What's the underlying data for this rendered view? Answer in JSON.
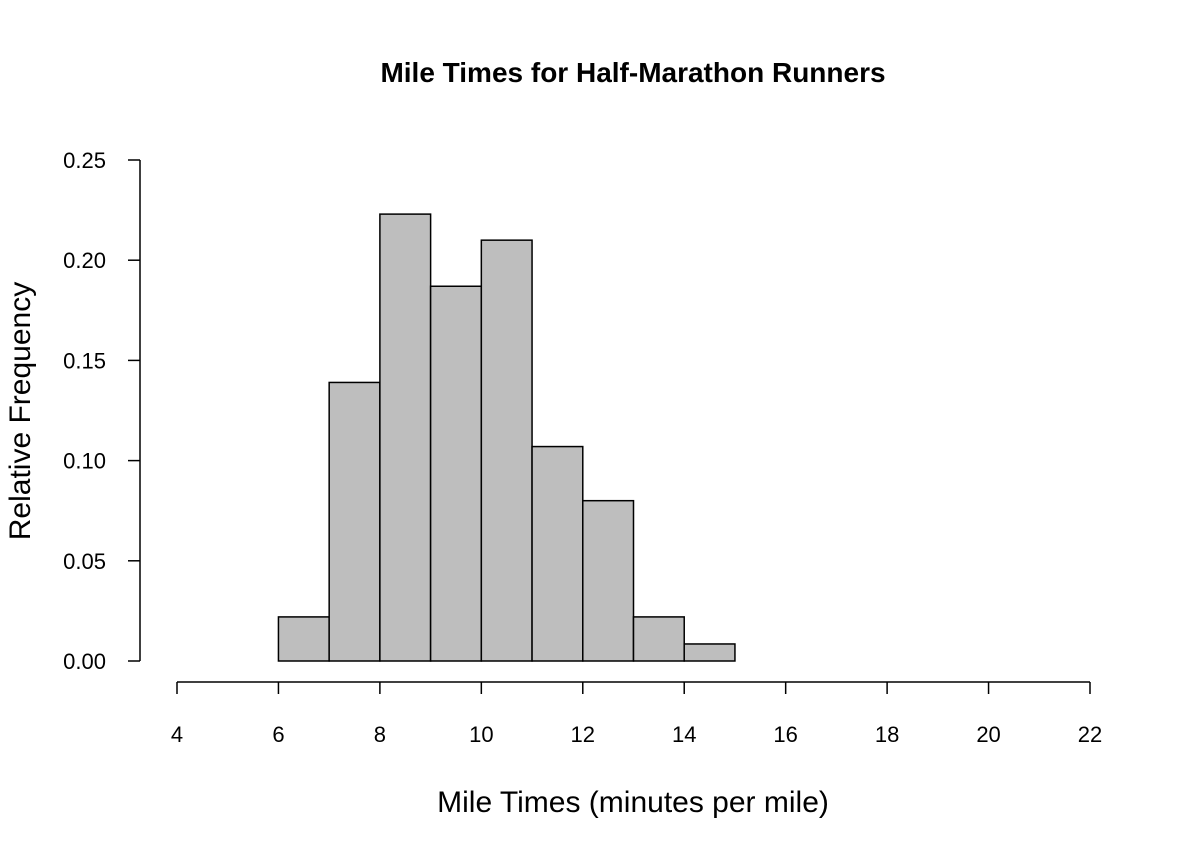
{
  "chart_data": {
    "type": "bar",
    "subtype": "histogram",
    "title": "Mile Times for Half-Marathon Runners",
    "xlabel": "Mile Times (minutes per mile)",
    "ylabel": "Relative Frequency",
    "bin_edges": [
      4,
      5,
      6,
      7,
      8,
      9,
      10,
      11,
      12,
      13,
      14,
      15,
      16,
      17,
      18,
      19,
      20,
      21,
      22
    ],
    "values": [
      0,
      0,
      0.022,
      0.139,
      0.223,
      0.187,
      0.21,
      0.107,
      0.08,
      0.022,
      0.0085,
      0,
      0,
      0,
      0,
      0,
      0,
      0
    ],
    "xlim": [
      4,
      22
    ],
    "ylim": [
      0,
      0.25
    ],
    "xticks": [
      "4",
      "6",
      "8",
      "10",
      "12",
      "14",
      "16",
      "18",
      "20",
      "22"
    ],
    "yticks": [
      "0.00",
      "0.05",
      "0.10",
      "0.15",
      "0.20",
      "0.25"
    ],
    "bar_color": "#bebebe",
    "grid": false
  }
}
